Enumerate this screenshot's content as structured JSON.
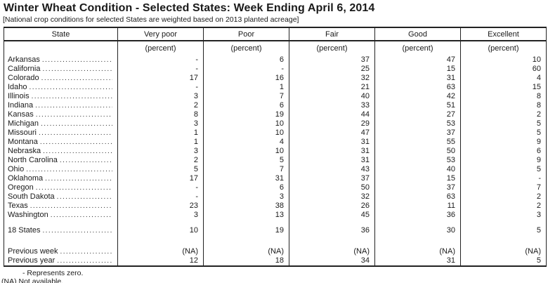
{
  "title": "Winter Wheat Condition - Selected States: Week Ending April 6, 2014",
  "subtitle": "[National crop conditions for selected States are weighted based on 2013 planted acreage]",
  "table": {
    "columns": [
      "State",
      "Very poor",
      "Poor",
      "Fair",
      "Good",
      "Excellent"
    ],
    "unit_label": "(percent)",
    "rows": [
      {
        "state": "Arkansas",
        "values": [
          "-",
          "6",
          "37",
          "47",
          "10"
        ]
      },
      {
        "state": "California",
        "values": [
          "-",
          "-",
          "25",
          "15",
          "60"
        ]
      },
      {
        "state": "Colorado",
        "values": [
          "17",
          "16",
          "32",
          "31",
          "4"
        ]
      },
      {
        "state": "Idaho",
        "values": [
          "-",
          "1",
          "21",
          "63",
          "15"
        ]
      },
      {
        "state": "Illinois",
        "values": [
          "3",
          "7",
          "40",
          "42",
          "8"
        ]
      },
      {
        "state": "Indiana",
        "values": [
          "2",
          "6",
          "33",
          "51",
          "8"
        ]
      },
      {
        "state": "Kansas",
        "values": [
          "8",
          "19",
          "44",
          "27",
          "2"
        ]
      },
      {
        "state": "Michigan",
        "values": [
          "3",
          "10",
          "29",
          "53",
          "5"
        ]
      },
      {
        "state": "Missouri",
        "values": [
          "1",
          "10",
          "47",
          "37",
          "5"
        ]
      },
      {
        "state": "Montana",
        "values": [
          "1",
          "4",
          "31",
          "55",
          "9"
        ]
      },
      {
        "state": "Nebraska",
        "values": [
          "3",
          "10",
          "31",
          "50",
          "6"
        ]
      },
      {
        "state": "North Carolina",
        "values": [
          "2",
          "5",
          "31",
          "53",
          "9"
        ]
      },
      {
        "state": "Ohio",
        "values": [
          "5",
          "7",
          "43",
          "40",
          "5"
        ]
      },
      {
        "state": "Oklahoma",
        "values": [
          "17",
          "31",
          "37",
          "15",
          "-"
        ]
      },
      {
        "state": "Oregon",
        "values": [
          "-",
          "6",
          "50",
          "37",
          "7"
        ]
      },
      {
        "state": "South Dakota",
        "values": [
          "-",
          "3",
          "32",
          "63",
          "2"
        ]
      },
      {
        "state": "Texas",
        "values": [
          "23",
          "38",
          "26",
          "11",
          "2"
        ]
      },
      {
        "state": "Washington",
        "values": [
          "3",
          "13",
          "45",
          "36",
          "3"
        ]
      }
    ],
    "total_row": {
      "state": "18 States",
      "values": [
        "10",
        "19",
        "36",
        "30",
        "5"
      ]
    },
    "previous_rows": [
      {
        "state": "Previous week",
        "values": [
          "(NA)",
          "(NA)",
          "(NA)",
          "(NA)",
          "(NA)"
        ]
      },
      {
        "state": "Previous year",
        "values": [
          "12",
          "18",
          "34",
          "31",
          "5"
        ]
      }
    ]
  },
  "footnotes": [
    "- Represents zero.",
    "(NA) Not available."
  ]
}
